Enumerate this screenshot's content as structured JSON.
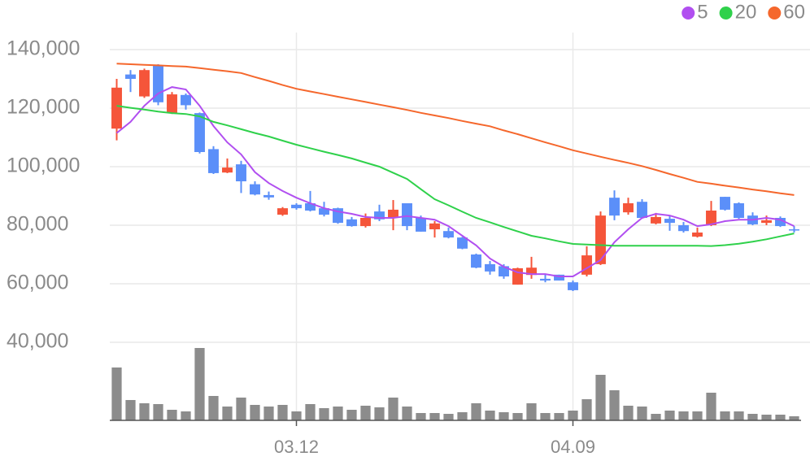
{
  "chart_data": {
    "type": "candlestick",
    "categories": [
      null,
      null,
      null,
      null,
      null,
      null,
      null,
      null,
      null,
      null,
      null,
      null,
      null,
      "03.12",
      null,
      null,
      null,
      null,
      null,
      null,
      null,
      null,
      null,
      null,
      null,
      null,
      null,
      null,
      null,
      null,
      null,
      null,
      null,
      "04.09",
      null,
      null,
      null,
      null,
      null,
      null,
      null,
      null,
      null,
      null,
      null,
      null,
      null,
      null,
      null,
      null
    ],
    "open": [
      113000,
      131500,
      124000,
      134500,
      118300,
      124500,
      118300,
      106000,
      98000,
      100800,
      94000,
      90300,
      83600,
      87000,
      87500,
      85800,
      85800,
      82000,
      79700,
      84700,
      82500,
      87500,
      82500,
      78600,
      78000,
      75800,
      70000,
      66700,
      66000,
      59700,
      63000,
      61700,
      63100,
      60500,
      63100,
      66700,
      89400,
      84400,
      88000,
      80600,
      82200,
      80000,
      76100,
      80000,
      89700,
      87500,
      83300,
      80800,
      82500,
      78600
    ],
    "high": [
      130000,
      133000,
      133500,
      135000,
      125500,
      125000,
      118500,
      107000,
      102800,
      102000,
      95000,
      91500,
      86200,
      87500,
      91700,
      88000,
      86000,
      82800,
      84000,
      87000,
      88600,
      87500,
      83300,
      81400,
      79200,
      76000,
      70300,
      67800,
      66700,
      65500,
      69200,
      63100,
      63100,
      61100,
      72800,
      84700,
      91900,
      89400,
      88900,
      84200,
      83100,
      81100,
      79200,
      88300,
      89700,
      87800,
      84400,
      83300,
      83000,
      79700
    ],
    "low": [
      109000,
      125500,
      123500,
      121000,
      118000,
      119500,
      104500,
      97500,
      97800,
      91000,
      90200,
      88700,
      83200,
      85300,
      84700,
      83000,
      80500,
      79500,
      79200,
      81400,
      78300,
      78300,
      77800,
      75800,
      75500,
      71800,
      65300,
      63100,
      61700,
      59700,
      61700,
      60500,
      61100,
      57500,
      62500,
      66400,
      81700,
      83600,
      82200,
      80300,
      78100,
      77500,
      75800,
      79700,
      85000,
      82200,
      80000,
      80000,
      79400,
      77500
    ],
    "close": [
      127000,
      130000,
      133000,
      122000,
      124700,
      121000,
      105000,
      97800,
      99700,
      95000,
      90500,
      89500,
      85800,
      85800,
      85000,
      83600,
      80800,
      79700,
      82500,
      82000,
      85300,
      79700,
      77800,
      80600,
      75800,
      72000,
      65500,
      64200,
      62500,
      65300,
      65500,
      61100,
      61100,
      57800,
      69700,
      83300,
      83300,
      87500,
      82500,
      82800,
      80800,
      78000,
      77500,
      85000,
      85300,
      82500,
      80300,
      81700,
      79700,
      78300
    ],
    "up_color": "#f5553a",
    "down_color": "#5b8ff9",
    "series": [
      {
        "name": "5",
        "color": "#b14ff0",
        "values": [
          111500,
          115300,
          120800,
          125000,
          127200,
          126400,
          120800,
          113900,
          108300,
          104200,
          98100,
          94400,
          91700,
          89400,
          87500,
          85800,
          84700,
          83900,
          82800,
          82500,
          82500,
          83100,
          82500,
          81900,
          79700,
          76400,
          73100,
          68600,
          65800,
          63900,
          63300,
          63300,
          62500,
          62500,
          65300,
          68100,
          74200,
          78600,
          82500,
          83900,
          83300,
          81900,
          79700,
          80300,
          81400,
          81900,
          81900,
          82500,
          81900,
          79700
        ]
      },
      {
        "name": "20",
        "color": "#2fd14b",
        "values": [
          120800,
          120100,
          119500,
          118800,
          118300,
          118000,
          117200,
          115300,
          114100,
          112800,
          111500,
          110300,
          108900,
          107500,
          106300,
          105100,
          104000,
          102800,
          101400,
          100000,
          97900,
          95800,
          92300,
          88900,
          86800,
          84600,
          82500,
          81000,
          79400,
          77900,
          76400,
          75500,
          74500,
          73600,
          73400,
          73200,
          73000,
          73000,
          73000,
          73000,
          73000,
          73000,
          73000,
          72900,
          73200,
          73700,
          74400,
          75200,
          76200,
          77200
        ]
      },
      {
        "name": "60",
        "color": "#f5672c",
        "values": [
          135200,
          135000,
          134800,
          134600,
          134400,
          134200,
          133700,
          133100,
          132600,
          132000,
          130600,
          129300,
          127900,
          126600,
          125700,
          124800,
          123900,
          123000,
          122100,
          121200,
          120300,
          119400,
          118400,
          117500,
          116600,
          115600,
          114700,
          113800,
          112400,
          111100,
          109700,
          108300,
          107000,
          105600,
          104500,
          103400,
          102300,
          101300,
          100200,
          98900,
          97500,
          96200,
          94800,
          94200,
          93500,
          92900,
          92200,
          91600,
          90900,
          90300
        ]
      }
    ],
    "volume": {
      "color": "#8c8c8c",
      "ylim": [
        0,
        100
      ],
      "values": [
        65,
        25,
        21,
        20,
        13,
        11,
        89,
        30,
        17,
        28,
        19,
        17,
        19,
        11,
        20,
        15,
        17,
        13,
        18,
        16,
        28,
        17,
        9,
        9,
        8,
        10,
        21,
        12,
        10,
        9,
        21,
        9,
        9,
        12,
        26,
        56,
        37,
        18,
        17,
        8,
        12,
        11,
        11,
        34,
        11,
        11,
        8,
        7,
        7,
        5
      ]
    },
    "ylim": [
      30000,
      150000
    ],
    "yticks": [
      {
        "value": 40000,
        "label": "40,000"
      },
      {
        "value": 60000,
        "label": "60,000"
      },
      {
        "value": 80000,
        "label": "80,000"
      },
      {
        "value": 100000,
        "label": "100,000"
      },
      {
        "value": 120000,
        "label": "120,000"
      },
      {
        "value": 140000,
        "label": "140,000"
      }
    ],
    "grid": true,
    "legend": "top-right"
  }
}
